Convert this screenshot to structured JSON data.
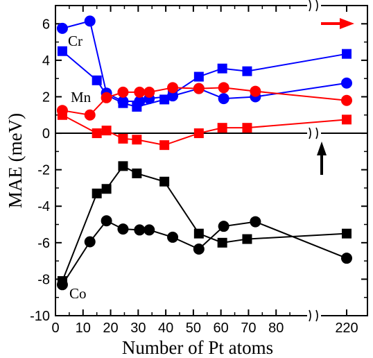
{
  "chart_data": {
    "type": "scatter",
    "xlabel": "Number of Pt atoms",
    "ylabel": "MAE (meV)",
    "xlim": [
      0,
      90
    ],
    "xlim_break": [
      210,
      230
    ],
    "ylim": [
      -10,
      7
    ],
    "x_ticks": [
      0,
      10,
      20,
      30,
      40,
      50,
      60,
      70,
      80,
      220
    ],
    "x_tick_labels": [
      "0",
      "10",
      "20",
      "30",
      "40",
      "50",
      "60",
      "70",
      "80",
      "220"
    ],
    "y_ticks": [
      -10,
      -8,
      -6,
      -4,
      -2,
      0,
      2,
      4,
      6
    ],
    "y_tick_labels": [
      "-10",
      "-8",
      "-6",
      "-4",
      "-2",
      "0",
      "2",
      "4",
      "6"
    ],
    "zero_line": true,
    "grid": false,
    "axis_break": true,
    "series": [
      {
        "label": "Cr",
        "color": "#0000ff",
        "marker": "circle",
        "x": [
          2.5,
          12.5,
          18.5,
          24.5,
          30.5,
          34,
          42.5,
          52,
          61,
          72.5,
          220
        ],
        "y": [
          5.75,
          6.15,
          2.2,
          1.75,
          1.75,
          1.9,
          2.05,
          2.45,
          1.9,
          2.0,
          2.75
        ]
      },
      {
        "label": "",
        "color": "#0000ff",
        "marker": "square",
        "x": [
          2.5,
          15,
          18.5,
          24.5,
          29.5,
          39.5,
          42.5,
          52,
          60.5,
          69.5,
          220
        ],
        "y": [
          4.5,
          2.9,
          2.1,
          1.65,
          1.45,
          1.85,
          2.15,
          3.1,
          3.55,
          3.4,
          4.35
        ]
      },
      {
        "label": "Mn",
        "color": "#ff0000",
        "marker": "circle",
        "x": [
          2.5,
          12.5,
          18.5,
          24.5,
          30.5,
          34,
          42.5,
          52,
          61,
          72.5,
          220
        ],
        "y": [
          1.25,
          1.0,
          1.95,
          2.25,
          2.25,
          2.25,
          2.5,
          2.45,
          2.5,
          2.3,
          1.8
        ]
      },
      {
        "label": "",
        "color": "#ff0000",
        "marker": "square",
        "x": [
          2.5,
          15,
          18.5,
          24.5,
          29.5,
          39.5,
          52,
          60.5,
          69.5,
          220
        ],
        "y": [
          1.0,
          0.0,
          0.15,
          -0.3,
          -0.35,
          -0.65,
          0.0,
          0.3,
          0.3,
          0.75
        ]
      },
      {
        "label": "Co",
        "color": "#000000",
        "marker": "circle",
        "x": [
          2.5,
          12.5,
          18.5,
          24.5,
          30.5,
          34,
          42.5,
          52,
          61,
          72.5,
          220
        ],
        "y": [
          -8.3,
          -5.95,
          -4.8,
          -5.25,
          -5.3,
          -5.3,
          -5.7,
          -6.35,
          -5.1,
          -4.85,
          -6.85
        ]
      },
      {
        "label": "",
        "color": "#000000",
        "marker": "square",
        "x": [
          2.5,
          15,
          18.5,
          24.5,
          29.5,
          39.5,
          52,
          60.5,
          69.5,
          220
        ],
        "y": [
          -8.1,
          -3.3,
          -3.05,
          -1.8,
          -2.2,
          -2.65,
          -5.5,
          -6.0,
          -5.8,
          -5.5
        ]
      }
    ],
    "arrows": [
      {
        "color": "#ff0000",
        "direction": "right"
      },
      {
        "color": "#000000",
        "direction": "up"
      }
    ]
  }
}
